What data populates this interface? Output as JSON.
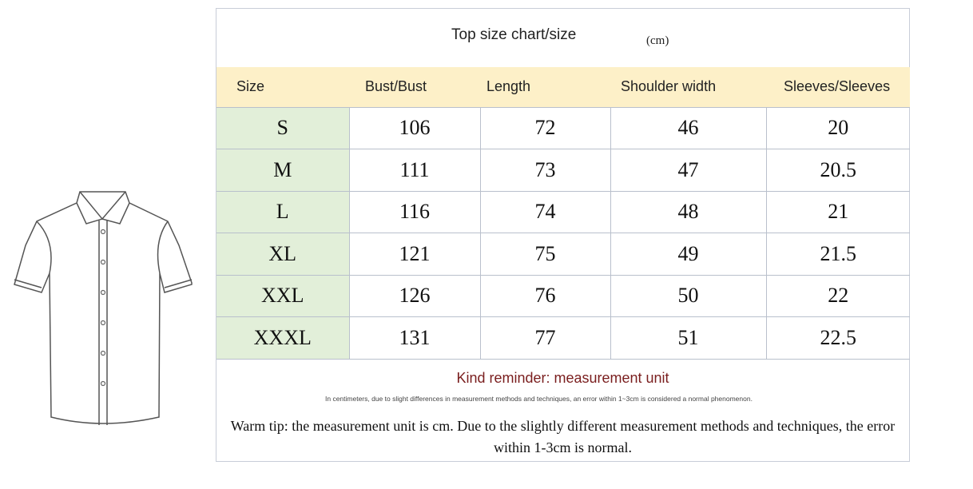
{
  "title": "Top size chart/size",
  "unit": "(cm)",
  "colors": {
    "header_bg": "#fdf0c8",
    "size_col_bg": "#e2efd9",
    "reminder": "#7a1e1e"
  },
  "illustration": "short-sleeve-shirt-outline",
  "table": {
    "headers": [
      "Size",
      "Bust/Bust",
      "Length",
      "Shoulder width",
      "Sleeves/Sleeves"
    ],
    "rows": [
      [
        "S",
        "106",
        "72",
        "46",
        "20"
      ],
      [
        "M",
        "111",
        "73",
        "47",
        "20.5"
      ],
      [
        "L",
        "116",
        "74",
        "48",
        "21"
      ],
      [
        "XL",
        "121",
        "75",
        "49",
        "21.5"
      ],
      [
        "XXL",
        "126",
        "76",
        "50",
        "22"
      ],
      [
        "XXXL",
        "131",
        "77",
        "51",
        "22.5"
      ]
    ]
  },
  "footer": {
    "reminder": "Kind reminder: measurement unit",
    "small_note": "In centimeters, due to slight differences in measurement methods and techniques, an error within 1~3cm is considered a normal phenomenon.",
    "warm_tip": "Warm tip: the measurement unit is cm. Due to the slightly different measurement methods and techniques, the error within 1-3cm is normal."
  }
}
